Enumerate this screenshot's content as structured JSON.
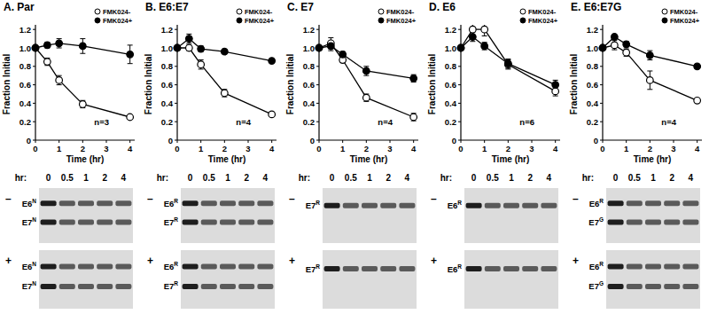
{
  "chart_data": [
    {
      "type": "line",
      "title": "A. Par",
      "x_label": "Time (hr)",
      "y_label": "Fraction Initial",
      "x": [
        0,
        0.5,
        1,
        2,
        4
      ],
      "xlim": [
        0,
        4.2
      ],
      "xticks": [
        0,
        1,
        2,
        3,
        4
      ],
      "ylim": [
        0,
        1.25
      ],
      "yticks": [
        0,
        0.2,
        0.4,
        0.6,
        0.8,
        {
          "value": 1,
          "label": "1.0"
        },
        1.2
      ],
      "legend": "upper right",
      "annotations": [
        "n=3"
      ],
      "series": [
        {
          "name": "FMK024-",
          "color": "#000000",
          "marker": "open",
          "values": [
            1,
            0.85,
            0.65,
            0.39,
            0.25
          ],
          "errors": [
            0,
            0.04,
            0.05,
            0.04,
            0.02
          ]
        },
        {
          "name": "FMK024+",
          "color": "#000000",
          "marker": "filled",
          "values": [
            1,
            1.03,
            1.05,
            1.02,
            0.93
          ],
          "errors": [
            0,
            0.03,
            0.05,
            0.08,
            0.1
          ]
        }
      ]
    },
    {
      "type": "line",
      "title": "B. E6:E7",
      "x_label": "Time (hr)",
      "y_label": "Fraction Initial",
      "x": [
        0,
        0.5,
        1,
        2,
        4
      ],
      "xlim": [
        0,
        4.2
      ],
      "xticks": [
        0,
        1,
        2,
        3,
        4
      ],
      "ylim": [
        0,
        1.25
      ],
      "yticks": [
        0,
        0.2,
        0.4,
        0.6,
        0.8,
        {
          "value": 1,
          "label": "1.0"
        },
        1.2
      ],
      "legend": "upper right",
      "annotations": [
        "n=4"
      ],
      "series": [
        {
          "name": "FMK024-",
          "color": "#000000",
          "marker": "open",
          "values": [
            1,
            1.0,
            0.82,
            0.51,
            0.28
          ],
          "errors": [
            0,
            0.03,
            0.05,
            0.04,
            0.01
          ]
        },
        {
          "name": "FMK024+",
          "color": "#000000",
          "marker": "filled",
          "values": [
            1,
            1.1,
            0.99,
            0.96,
            0.86
          ],
          "errors": [
            0,
            0.05,
            0.03,
            0.02,
            0.01
          ]
        }
      ]
    },
    {
      "type": "line",
      "title": "C. E7",
      "x_label": "Time (hr)",
      "y_label": "Fraction Initial",
      "x": [
        0,
        0.5,
        1,
        2,
        4
      ],
      "xlim": [
        0,
        4.2
      ],
      "xticks": [
        0,
        1,
        2,
        3,
        4
      ],
      "ylim": [
        0,
        1.25
      ],
      "yticks": [
        0,
        0.2,
        0.4,
        0.6,
        0.8,
        {
          "value": 1,
          "label": "1.0"
        },
        1.2
      ],
      "legend": "upper right",
      "annotations": [
        "n=4"
      ],
      "series": [
        {
          "name": "FMK024-",
          "color": "#000000",
          "marker": "open",
          "values": [
            1,
            1.05,
            0.87,
            0.46,
            0.25
          ],
          "errors": [
            0,
            0.06,
            0.03,
            0.04,
            0.04
          ]
        },
        {
          "name": "FMK024+",
          "color": "#000000",
          "marker": "filled",
          "values": [
            1,
            1.02,
            0.93,
            0.75,
            0.67
          ],
          "errors": [
            0,
            0.05,
            0.03,
            0.05,
            0.04
          ]
        }
      ]
    },
    {
      "type": "line",
      "title": "D. E6",
      "x_label": "Time (hr)",
      "y_label": "Fraction Initial",
      "x": [
        0,
        0.5,
        1,
        2,
        4
      ],
      "xlim": [
        0,
        4.2
      ],
      "xticks": [
        0,
        1,
        2,
        3,
        4
      ],
      "ylim": [
        0,
        1.25
      ],
      "yticks": [
        0,
        0.2,
        0.4,
        0.6,
        0.8,
        {
          "value": 1,
          "label": "1.0"
        },
        1.2
      ],
      "legend": "upper right",
      "annotations": [
        "n=6"
      ],
      "series": [
        {
          "name": "FMK024-",
          "color": "#000000",
          "marker": "open",
          "values": [
            1,
            1.2,
            1.2,
            0.82,
            0.53
          ],
          "errors": [
            0,
            0.08,
            0.07,
            0.05,
            0.05
          ]
        },
        {
          "name": "FMK024+",
          "color": "#000000",
          "marker": "filled",
          "values": [
            1,
            1.12,
            1.02,
            0.83,
            0.6
          ],
          "errors": [
            0,
            0.05,
            0.04,
            0.05,
            0.05
          ]
        }
      ]
    },
    {
      "type": "line",
      "title": "E. E6:E7G",
      "x_label": "Time (hr)",
      "y_label": "Fraction Initial",
      "x": [
        0,
        0.5,
        1,
        2,
        4
      ],
      "xlim": [
        0,
        4.2
      ],
      "xticks": [
        0,
        1,
        2,
        3,
        4
      ],
      "ylim": [
        0,
        1.25
      ],
      "yticks": [
        0,
        0.2,
        0.4,
        0.6,
        0.8,
        {
          "value": 1,
          "label": "1.0"
        },
        1.2
      ],
      "legend": "upper right",
      "annotations": [
        "n=4"
      ],
      "series": [
        {
          "name": "FMK024-",
          "color": "#000000",
          "marker": "open",
          "values": [
            1,
            1.03,
            0.95,
            0.65,
            0.43
          ],
          "errors": [
            0,
            0.05,
            0.04,
            0.1,
            0.02
          ]
        },
        {
          "name": "FMK024+",
          "color": "#000000",
          "marker": "filled",
          "values": [
            1,
            1.12,
            1.04,
            0.92,
            0.8
          ],
          "errors": [
            0,
            0.02,
            0.03,
            0.05,
            0.02
          ]
        }
      ]
    }
  ],
  "blots": [
    {
      "time_label": "hr:",
      "times": [
        "0",
        "0.5",
        "1",
        "2",
        "4"
      ],
      "panels": [
        {
          "sign": "–",
          "bands": [
            {
              "name": "E6",
              "sup": "N"
            },
            {
              "name": "E7",
              "sup": "N"
            }
          ]
        },
        {
          "sign": "+",
          "bands": [
            {
              "name": "E6",
              "sup": "N"
            },
            {
              "name": "E7",
              "sup": "N"
            }
          ]
        }
      ]
    },
    {
      "time_label": "hr:",
      "times": [
        "0",
        "0.5",
        "1",
        "2",
        "4"
      ],
      "panels": [
        {
          "sign": "–",
          "bands": [
            {
              "name": "E6",
              "sup": "R"
            },
            {
              "name": "E7",
              "sup": "R"
            }
          ]
        },
        {
          "sign": "+",
          "bands": [
            {
              "name": "E6",
              "sup": "R"
            },
            {
              "name": "E7",
              "sup": "R"
            }
          ]
        }
      ]
    },
    {
      "time_label": "hr:",
      "times": [
        "0",
        "0.5",
        "1",
        "2",
        "4"
      ],
      "panels": [
        {
          "sign": "–",
          "bands": [
            {
              "name": "E7",
              "sup": "R"
            }
          ]
        },
        {
          "sign": "+",
          "bands": [
            {
              "name": "E7",
              "sup": "R"
            }
          ]
        }
      ]
    },
    {
      "time_label": "hr:",
      "times": [
        "0",
        "0.5",
        "1",
        "2",
        "4"
      ],
      "panels": [
        {
          "sign": "–",
          "bands": [
            {
              "name": "E6",
              "sup": "R"
            }
          ]
        },
        {
          "sign": "+",
          "bands": [
            {
              "name": "E6",
              "sup": "R"
            }
          ]
        }
      ]
    },
    {
      "time_label": "hr:",
      "times": [
        "0",
        "0.5",
        "1",
        "2",
        "4"
      ],
      "panels": [
        {
          "sign": "–",
          "bands": [
            {
              "name": "E6",
              "sup": "R"
            },
            {
              "name": "E7",
              "sup": "G"
            }
          ]
        },
        {
          "sign": "+",
          "bands": [
            {
              "name": "E6",
              "sup": "R"
            },
            {
              "name": "E7",
              "sup": "G"
            }
          ]
        }
      ]
    }
  ]
}
